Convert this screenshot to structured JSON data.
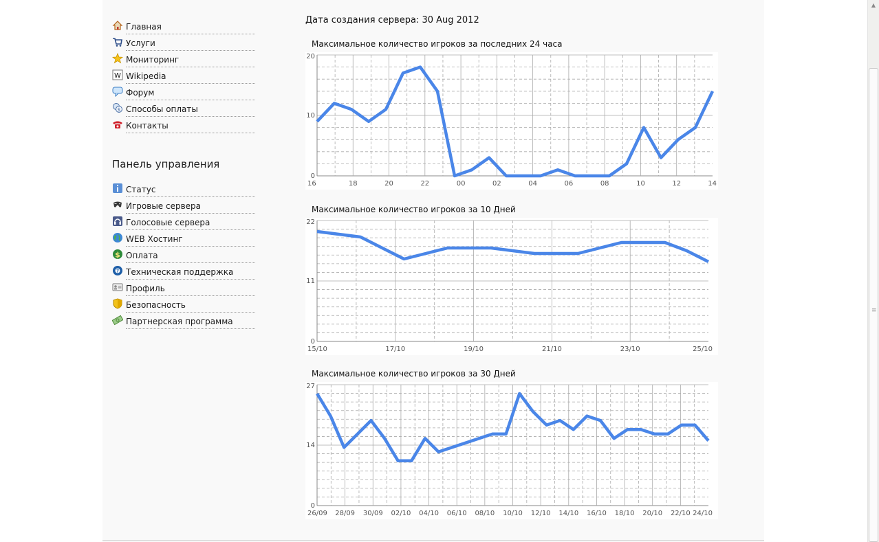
{
  "menu_main": [
    {
      "label": "Главная",
      "icon": "home-icon"
    },
    {
      "label": "Услуги",
      "icon": "cart-icon"
    },
    {
      "label": "Мониторинг",
      "icon": "star-icon"
    },
    {
      "label": "Wikipedia",
      "icon": "wikipedia-icon"
    },
    {
      "label": "Форум",
      "icon": "chat-bubble-icon"
    },
    {
      "label": "Способы оплаты",
      "icon": "money-icon"
    },
    {
      "label": "Контакты",
      "icon": "phone-icon"
    }
  ],
  "panel": {
    "title": "Панель управления",
    "items": [
      {
        "label": "Статус",
        "icon": "info-icon"
      },
      {
        "label": "Игровые сервера",
        "icon": "gamepad-icon"
      },
      {
        "label": "Голосовые сервера",
        "icon": "headset-icon"
      },
      {
        "label": "WEB Хостинг",
        "icon": "globe-icon"
      },
      {
        "label": "Оплата",
        "icon": "dollar-icon"
      },
      {
        "label": "Техническая поддержка",
        "icon": "support-icon"
      },
      {
        "label": "Профиль",
        "icon": "id-card-icon"
      },
      {
        "label": "Безопасность",
        "icon": "shield-icon"
      },
      {
        "label": "Партнерская программа",
        "icon": "banknote-icon"
      }
    ]
  },
  "created_text": "Дата создания сервера: 30 Aug 2012",
  "colors": {
    "line": "#4a86e8",
    "grid": "#aaaaaa",
    "axis": "#888888",
    "page": "#f9f9f9"
  },
  "chart_data": [
    {
      "type": "line",
      "title": "Максимальное количество игроков за последних 24 часа",
      "x_ticks": [
        "16",
        "18",
        "20",
        "22",
        "00",
        "02",
        "04",
        "06",
        "08",
        "10",
        "12",
        "14"
      ],
      "y_ticks": [
        "0",
        "10",
        "20"
      ],
      "ylim": [
        0,
        20
      ],
      "values": [
        9,
        12,
        11,
        9,
        11,
        17,
        18,
        14,
        0,
        1,
        3,
        0,
        0,
        0,
        1,
        0,
        0,
        0,
        2,
        8,
        3,
        6,
        8,
        14
      ]
    },
    {
      "type": "line",
      "title": "Максимальное количество игроков за 10 Дней",
      "x_ticks": [
        "15/10",
        "17/10",
        "19/10",
        "21/10",
        "23/10",
        "25/10"
      ],
      "y_ticks": [
        "0",
        "11",
        "22"
      ],
      "ylim": [
        0,
        22
      ],
      "values": [
        20,
        19.5,
        19,
        17,
        15,
        16,
        17,
        17,
        17,
        16.5,
        16,
        16,
        16,
        17,
        18,
        18,
        18,
        16.5,
        14.5
      ]
    },
    {
      "type": "line",
      "title": "Максимальное количество игроков за 30 Дней",
      "x_ticks": [
        "26/09",
        "28/09",
        "30/09",
        "02/10",
        "04/10",
        "06/10",
        "08/10",
        "10/10",
        "12/10",
        "14/10",
        "16/10",
        "18/10",
        "20/10",
        "22/10",
        "24/10"
      ],
      "y_ticks": [
        "0",
        "14",
        "27"
      ],
      "ylim": [
        0,
        27
      ],
      "values": [
        25,
        20,
        13,
        16,
        19,
        15,
        10,
        10,
        15,
        12,
        13,
        14,
        15,
        16,
        16,
        25,
        21,
        18,
        19,
        17,
        20,
        19,
        15,
        17,
        17,
        16,
        16,
        18,
        18,
        14.5
      ]
    }
  ]
}
